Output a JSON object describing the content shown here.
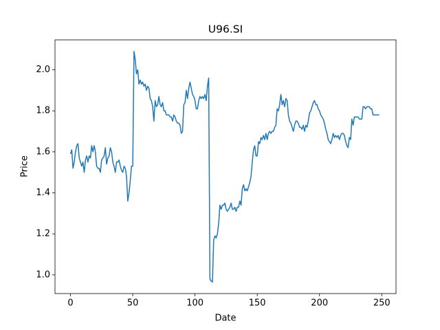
{
  "chart_data": {
    "type": "line",
    "title": "U96.SI",
    "x_label": "Date",
    "y_label": "Price",
    "color": "#1f77b4",
    "x": [
      0,
      1,
      2,
      3,
      4,
      5,
      6,
      7,
      8,
      9,
      10,
      11,
      12,
      13,
      14,
      15,
      16,
      17,
      18,
      19,
      20,
      21,
      22,
      23,
      24,
      25,
      26,
      27,
      28,
      29,
      30,
      31,
      32,
      33,
      34,
      35,
      36,
      37,
      38,
      39,
      40,
      41,
      42,
      43,
      44,
      45,
      46,
      47,
      48,
      49,
      50,
      51,
      52,
      53,
      54,
      55,
      56,
      57,
      58,
      59,
      60,
      61,
      62,
      63,
      64,
      65,
      66,
      67,
      68,
      69,
      70,
      71,
      72,
      73,
      74,
      75,
      76,
      77,
      78,
      79,
      80,
      81,
      82,
      83,
      84,
      85,
      86,
      87,
      88,
      89,
      90,
      91,
      92,
      93,
      94,
      95,
      96,
      97,
      98,
      99,
      100,
      101,
      102,
      103,
      104,
      105,
      106,
      107,
      108,
      109,
      110,
      111,
      112,
      113,
      114,
      115,
      116,
      117,
      118,
      119,
      120,
      121,
      122,
      123,
      124,
      125,
      126,
      127,
      128,
      129,
      130,
      131,
      132,
      133,
      134,
      135,
      136,
      137,
      138,
      139,
      140,
      141,
      142,
      143,
      144,
      145,
      146,
      147,
      148,
      149,
      150,
      151,
      152,
      153,
      154,
      155,
      156,
      157,
      158,
      159,
      160,
      161,
      162,
      163,
      164,
      165,
      166,
      167,
      168,
      169,
      170,
      171,
      172,
      173,
      174,
      175,
      176,
      177,
      178,
      179,
      180,
      181,
      182,
      183,
      184,
      185,
      186,
      187,
      188,
      189,
      190,
      191,
      192,
      193,
      194,
      195,
      196,
      197,
      198,
      199,
      200,
      201,
      202,
      203,
      204,
      205,
      206,
      207,
      208,
      209,
      210,
      211,
      212,
      213,
      214,
      215,
      216,
      217,
      218,
      219,
      220,
      221,
      222,
      223,
      224,
      225,
      226,
      227,
      228,
      229,
      230,
      231,
      232,
      233,
      234,
      235,
      236,
      237,
      238,
      239,
      240,
      241,
      242,
      243,
      244,
      245,
      246,
      247,
      248
    ],
    "values": [
      1.59,
      1.61,
      1.52,
      1.55,
      1.6,
      1.63,
      1.64,
      1.57,
      1.55,
      1.53,
      1.55,
      1.5,
      1.56,
      1.58,
      1.55,
      1.58,
      1.57,
      1.63,
      1.6,
      1.63,
      1.6,
      1.53,
      1.52,
      1.52,
      1.5,
      1.56,
      1.57,
      1.58,
      1.62,
      1.54,
      1.57,
      1.58,
      1.62,
      1.6,
      1.55,
      1.53,
      1.5,
      1.55,
      1.55,
      1.56,
      1.53,
      1.51,
      1.5,
      1.53,
      1.52,
      1.48,
      1.36,
      1.4,
      1.46,
      1.53,
      1.53,
      2.09,
      2.05,
      1.98,
      2.0,
      1.93,
      1.95,
      1.93,
      1.94,
      1.92,
      1.93,
      1.9,
      1.92,
      1.91,
      1.86,
      1.85,
      1.82,
      1.75,
      1.85,
      1.82,
      1.83,
      1.87,
      1.83,
      1.82,
      1.84,
      1.8,
      1.8,
      1.78,
      1.78,
      1.78,
      1.77,
      1.77,
      1.75,
      1.78,
      1.77,
      1.75,
      1.74,
      1.74,
      1.73,
      1.69,
      1.7,
      1.83,
      1.84,
      1.9,
      1.86,
      1.91,
      1.94,
      1.91,
      1.88,
      1.87,
      1.85,
      1.81,
      1.81,
      1.85,
      1.87,
      1.86,
      1.87,
      1.86,
      1.88,
      1.85,
      1.92,
      1.96,
      0.98,
      0.97,
      0.965,
      1.17,
      1.19,
      1.18,
      1.2,
      1.25,
      1.34,
      1.32,
      1.34,
      1.34,
      1.35,
      1.32,
      1.31,
      1.32,
      1.33,
      1.35,
      1.32,
      1.32,
      1.33,
      1.31,
      1.33,
      1.33,
      1.36,
      1.34,
      1.42,
      1.44,
      1.41,
      1.42,
      1.41,
      1.43,
      1.45,
      1.48,
      1.55,
      1.61,
      1.63,
      1.58,
      1.58,
      1.65,
      1.64,
      1.67,
      1.66,
      1.68,
      1.66,
      1.69,
      1.66,
      1.69,
      1.7,
      1.69,
      1.7,
      1.7,
      1.72,
      1.73,
      1.81,
      1.8,
      1.83,
      1.88,
      1.83,
      1.85,
      1.82,
      1.86,
      1.85,
      1.78,
      1.75,
      1.74,
      1.72,
      1.7,
      1.73,
      1.75,
      1.75,
      1.74,
      1.72,
      1.72,
      1.71,
      1.73,
      1.7,
      1.73,
      1.72,
      1.75,
      1.79,
      1.8,
      1.82,
      1.84,
      1.85,
      1.83,
      1.83,
      1.81,
      1.8,
      1.78,
      1.77,
      1.76,
      1.74,
      1.71,
      1.69,
      1.66,
      1.65,
      1.64,
      1.66,
      1.69,
      1.67,
      1.68,
      1.67,
      1.68,
      1.66,
      1.68,
      1.69,
      1.69,
      1.68,
      1.65,
      1.63,
      1.62,
      1.67,
      1.66,
      1.76,
      1.73,
      1.77,
      1.77,
      1.77,
      1.77,
      1.76,
      1.76,
      1.76,
      1.82,
      1.82,
      1.81,
      1.82,
      1.82,
      1.82,
      1.81,
      1.81,
      1.78,
      1.78,
      1.78,
      1.78,
      1.78,
      1.78
    ],
    "xlim": [
      -12.45,
      261.45
    ],
    "ylim": [
      0.909,
      2.146
    ],
    "xticks": [
      0,
      50,
      100,
      150,
      200,
      250
    ],
    "yticks": [
      {
        "value": 1,
        "label": "1.0"
      },
      1.2,
      1.4,
      1.6,
      1.8,
      {
        "value": 2,
        "label": "2.0"
      }
    ]
  }
}
